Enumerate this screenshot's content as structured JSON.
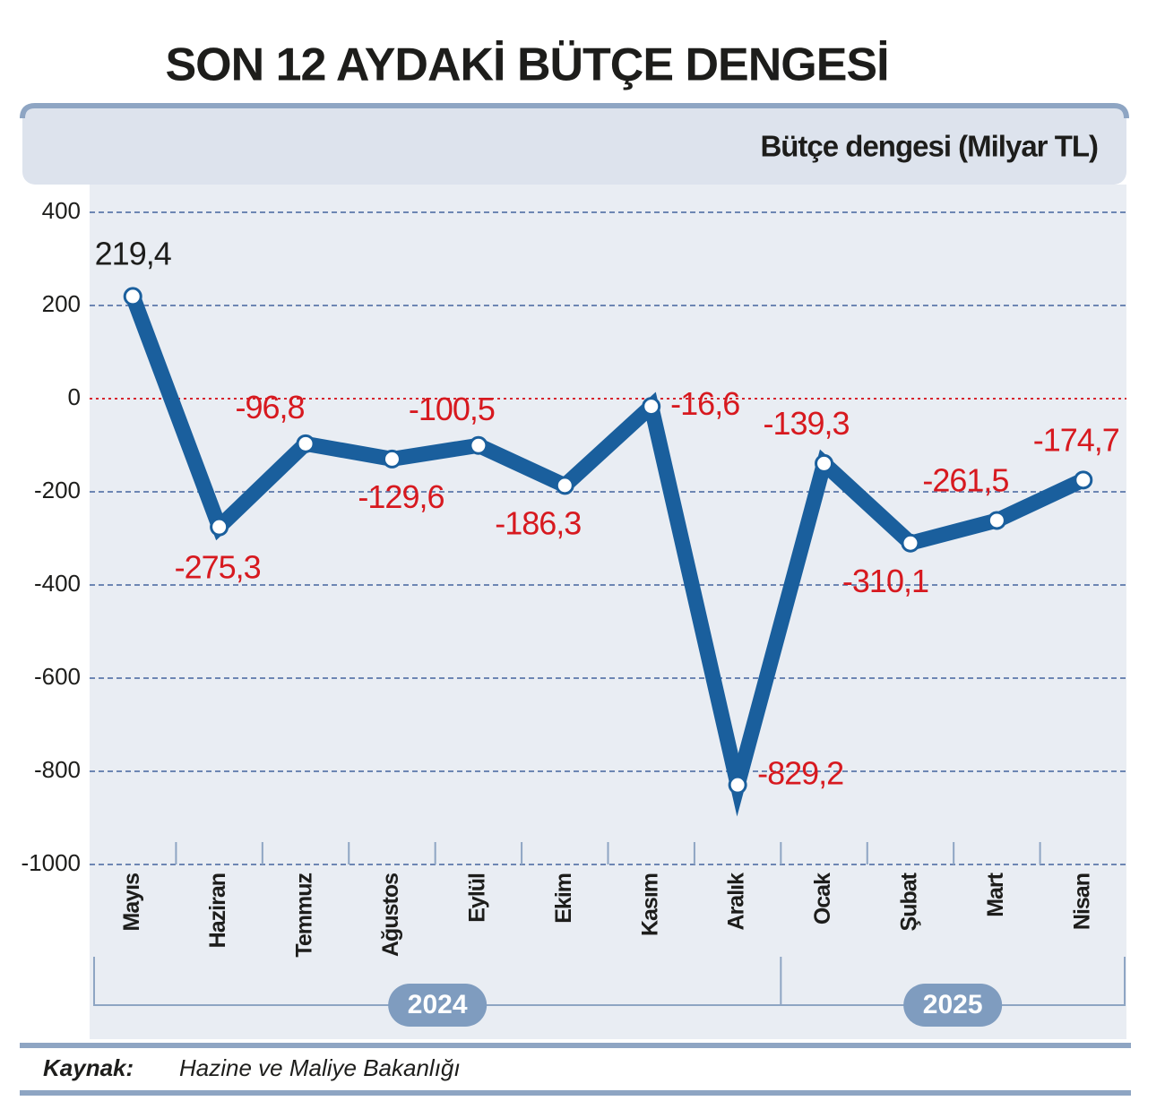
{
  "chart_data": {
    "type": "line",
    "title": "SON 12 AYDAKİ BÜTÇE DENGESİ",
    "subtitle": "Bütçe dengesi (Milyar TL)",
    "categories": [
      "Mayıs",
      "Haziran",
      "Temmuz",
      "Ağustos",
      "Eylül",
      "Ekim",
      "Kasım",
      "Aralık",
      "Ocak",
      "Şubat",
      "Mart",
      "Nisan"
    ],
    "values": [
      219.4,
      -275.3,
      -96.8,
      -129.6,
      -100.5,
      -186.3,
      -16.6,
      -829.2,
      -139.3,
      -310.1,
      -261.5,
      -174.7
    ],
    "value_labels": [
      "219,4",
      "-275,3",
      "-96,8",
      "-129,6",
      "-100,5",
      "-186,3",
      "-16,6",
      "-829,2",
      "-139,3",
      "-310,1",
      "-261,5",
      "-174,7"
    ],
    "color": "#1a5f9d",
    "ylim": [
      -1000,
      400
    ],
    "yticks": [
      400,
      200,
      0,
      -200,
      -400,
      -600,
      -800,
      -1000
    ],
    "grid": true,
    "year_groups": [
      "2024",
      "2025"
    ],
    "source_label": "Kaynak:",
    "source": "Hazine ve Maliye Bakanlığı"
  }
}
